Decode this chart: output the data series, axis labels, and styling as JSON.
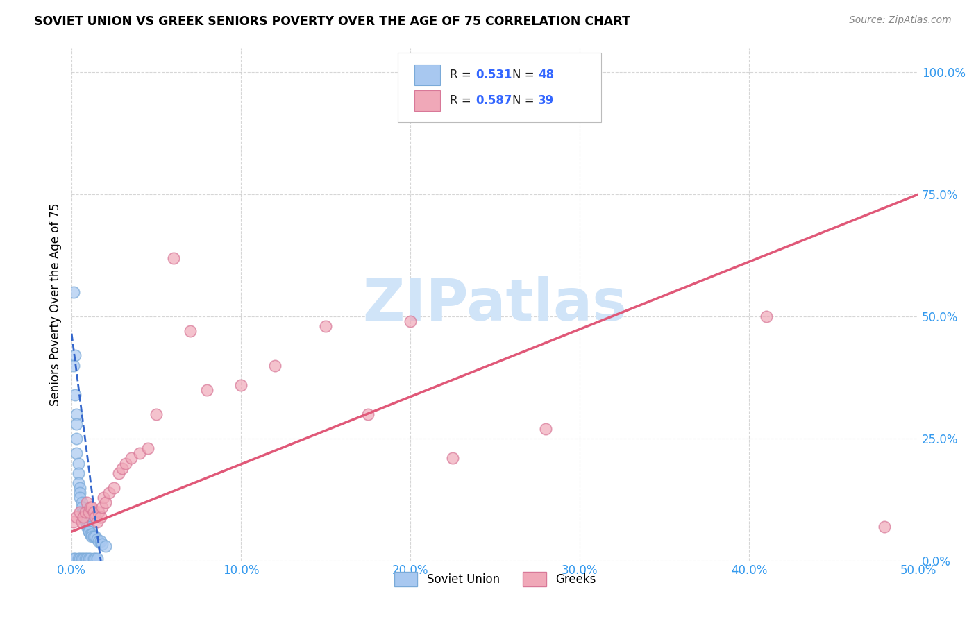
{
  "title": "SOVIET UNION VS GREEK SENIORS POVERTY OVER THE AGE OF 75 CORRELATION CHART",
  "source": "Source: ZipAtlas.com",
  "ylabel_label": "Seniors Poverty Over the Age of 75",
  "xlim": [
    0.0,
    0.5
  ],
  "ylim": [
    0.0,
    1.05
  ],
  "xtick_vals": [
    0.0,
    0.1,
    0.2,
    0.3,
    0.4,
    0.5
  ],
  "xtick_labels": [
    "0.0%",
    "10.0%",
    "20.0%",
    "30.0%",
    "40.0%",
    "50.0%"
  ],
  "ytick_vals": [
    0.0,
    0.25,
    0.5,
    0.75,
    1.0
  ],
  "ytick_labels": [
    "0.0%",
    "25.0%",
    "50.0%",
    "75.0%",
    "100.0%"
  ],
  "soviet_R": "0.531",
  "soviet_N": "48",
  "greek_R": "0.587",
  "greek_N": "39",
  "soviet_color": "#A8C8F0",
  "soviet_edge_color": "#7AAAD8",
  "soviet_line_color": "#3366CC",
  "greek_color": "#F0A8B8",
  "greek_edge_color": "#D87898",
  "greek_line_color": "#E05878",
  "watermark_text": "ZIPatlas",
  "watermark_color": "#D0E4F8",
  "legend_blue": "#3366FF",
  "soviet_x": [
    0.001,
    0.001,
    0.002,
    0.002,
    0.002,
    0.003,
    0.003,
    0.003,
    0.003,
    0.004,
    0.004,
    0.004,
    0.004,
    0.005,
    0.005,
    0.005,
    0.005,
    0.006,
    0.006,
    0.006,
    0.007,
    0.007,
    0.007,
    0.008,
    0.008,
    0.008,
    0.009,
    0.009,
    0.009,
    0.01,
    0.01,
    0.01,
    0.01,
    0.011,
    0.011,
    0.012,
    0.012,
    0.013,
    0.013,
    0.014,
    0.014,
    0.015,
    0.015,
    0.016,
    0.017,
    0.018,
    0.02,
    0.001
  ],
  "soviet_y": [
    0.55,
    0.005,
    0.42,
    0.34,
    0.005,
    0.3,
    0.28,
    0.25,
    0.22,
    0.2,
    0.18,
    0.16,
    0.005,
    0.15,
    0.14,
    0.13,
    0.005,
    0.12,
    0.11,
    0.005,
    0.1,
    0.09,
    0.005,
    0.09,
    0.08,
    0.005,
    0.08,
    0.07,
    0.005,
    0.07,
    0.06,
    0.06,
    0.005,
    0.055,
    0.005,
    0.055,
    0.05,
    0.05,
    0.005,
    0.05,
    0.005,
    0.045,
    0.005,
    0.04,
    0.04,
    0.035,
    0.03,
    0.4
  ],
  "greek_x": [
    0.001,
    0.003,
    0.005,
    0.006,
    0.007,
    0.008,
    0.009,
    0.01,
    0.011,
    0.012,
    0.013,
    0.014,
    0.015,
    0.016,
    0.017,
    0.018,
    0.019,
    0.02,
    0.022,
    0.025,
    0.028,
    0.03,
    0.032,
    0.035,
    0.04,
    0.045,
    0.05,
    0.06,
    0.07,
    0.08,
    0.1,
    0.12,
    0.15,
    0.175,
    0.2,
    0.225,
    0.28,
    0.41,
    0.48
  ],
  "greek_y": [
    0.08,
    0.09,
    0.1,
    0.08,
    0.09,
    0.1,
    0.12,
    0.1,
    0.11,
    0.11,
    0.1,
    0.09,
    0.08,
    0.1,
    0.09,
    0.11,
    0.13,
    0.12,
    0.14,
    0.15,
    0.18,
    0.19,
    0.2,
    0.21,
    0.22,
    0.23,
    0.3,
    0.62,
    0.47,
    0.35,
    0.36,
    0.4,
    0.48,
    0.3,
    0.49,
    0.21,
    0.27,
    0.5,
    0.07
  ],
  "figsize": [
    14.06,
    8.92
  ],
  "dpi": 100
}
